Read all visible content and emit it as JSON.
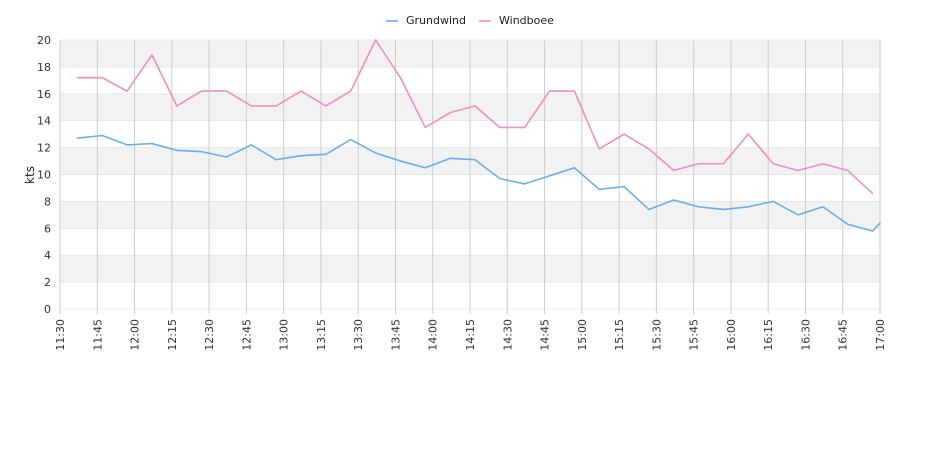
{
  "chart_data": {
    "type": "line",
    "title": "",
    "xlabel": "",
    "ylabel": "kts",
    "ylim": [
      0,
      20
    ],
    "y_ticks": [
      "0",
      "2",
      "4",
      "6",
      "8",
      "10",
      "12",
      "14",
      "16",
      "18",
      "20"
    ],
    "x_ticks": [
      "11:30",
      "11:45",
      "12:00",
      "12:15",
      "12:30",
      "12:45",
      "13:00",
      "13:15",
      "13:30",
      "13:45",
      "14:00",
      "14:15",
      "14:30",
      "14:45",
      "15:00",
      "15:15",
      "15:30",
      "15:45",
      "16:00",
      "16:15",
      "16:30",
      "16:45",
      "17:00"
    ],
    "xlim": [
      "11:30",
      "17:00"
    ],
    "grid": "horizontal bands, vertical lines at ticks",
    "legend_position": "top-center",
    "x": [
      "11:37",
      "11:47",
      "11:57",
      "12:07",
      "12:17",
      "12:27",
      "12:37",
      "12:47",
      "12:57",
      "13:07",
      "13:17",
      "13:27",
      "13:37",
      "13:47",
      "13:57",
      "14:07",
      "14:17",
      "14:27",
      "14:37",
      "14:47",
      "14:57",
      "15:07",
      "15:17",
      "15:27",
      "15:37",
      "15:47",
      "15:57",
      "16:07",
      "16:17",
      "16:27",
      "16:37",
      "16:47",
      "16:57",
      "17:00"
    ],
    "series": [
      {
        "name": "Grundwind",
        "color": "#6aaeee",
        "values": [
          12.7,
          12.9,
          12.2,
          12.3,
          11.8,
          11.7,
          11.3,
          12.2,
          11.1,
          11.4,
          11.5,
          12.6,
          11.6,
          11.0,
          10.5,
          11.2,
          11.1,
          9.7,
          9.3,
          9.9,
          10.5,
          8.9,
          9.1,
          7.4,
          8.1,
          7.6,
          7.4,
          7.6,
          8.0,
          7.0,
          7.6,
          6.3,
          5.8,
          6.4
        ]
      },
      {
        "name": "Windboee",
        "color": "#ee8fbd",
        "values": [
          17.2,
          17.2,
          16.2,
          18.9,
          15.1,
          16.2,
          16.2,
          15.1,
          15.1,
          16.2,
          15.1,
          16.2,
          20.0,
          17.2,
          13.5,
          14.6,
          15.1,
          13.5,
          13.5,
          16.2,
          16.2,
          11.9,
          13.0,
          11.9,
          10.3,
          10.8,
          10.8,
          13.0,
          10.8,
          10.3,
          10.8,
          10.3,
          8.6,
          null
        ]
      }
    ]
  }
}
